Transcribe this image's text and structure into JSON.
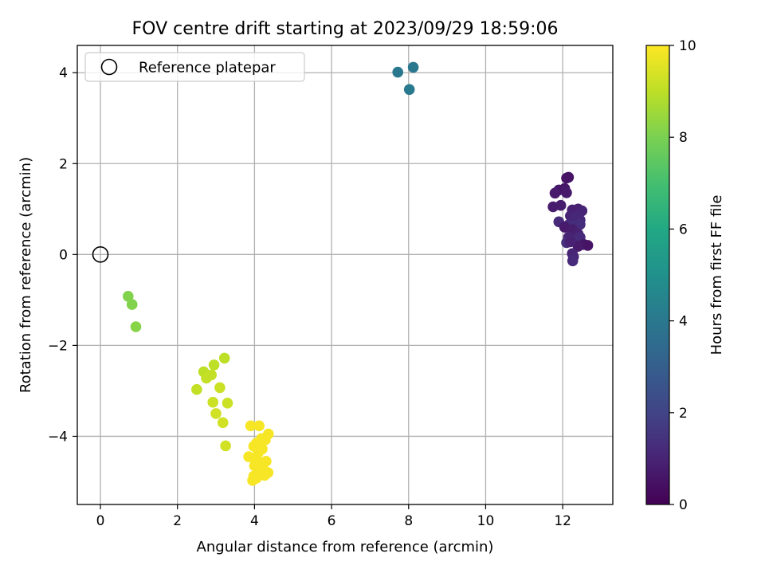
{
  "chart_data": {
    "type": "scatter",
    "title": "FOV centre drift starting at 2023/09/29 18:59:06",
    "xlabel": "Angular distance from reference (arcmin)",
    "ylabel": "Rotation from reference (arcmin)",
    "xlim": [
      -0.6,
      13.3
    ],
    "ylim": [
      -5.5,
      4.6
    ],
    "x_ticks": [
      0,
      2,
      4,
      6,
      8,
      10,
      12
    ],
    "y_ticks": [
      -4,
      -2,
      0,
      2,
      4
    ],
    "x_tick_labels": [
      "0",
      "2",
      "4",
      "6",
      "8",
      "10",
      "12"
    ],
    "y_tick_labels": [
      "−4",
      "−2",
      "0",
      "2",
      "4"
    ],
    "grid": true,
    "legend": {
      "location": "upper-left",
      "entries": [
        "Reference platepar"
      ]
    },
    "reference_point": {
      "name": "Reference platepar",
      "x": 0,
      "y": 0
    },
    "colorbar": {
      "label": "Hours from first FF file",
      "colormap": "viridis",
      "range": [
        0,
        10
      ],
      "ticks": [
        0,
        2,
        4,
        6,
        8,
        10
      ],
      "tick_labels": [
        "0",
        "2",
        "4",
        "6",
        "8",
        "10"
      ]
    },
    "points": [
      {
        "x": 12.1,
        "y": 1.68,
        "h": 0.5
      },
      {
        "x": 12.15,
        "y": 1.7,
        "h": 0.5
      },
      {
        "x": 11.9,
        "y": 1.42,
        "h": 0.6
      },
      {
        "x": 12.05,
        "y": 1.45,
        "h": 0.6
      },
      {
        "x": 12.1,
        "y": 1.36,
        "h": 0.7
      },
      {
        "x": 11.8,
        "y": 1.35,
        "h": 0.7
      },
      {
        "x": 11.75,
        "y": 1.05,
        "h": 0.8
      },
      {
        "x": 11.95,
        "y": 1.08,
        "h": 0.8
      },
      {
        "x": 12.25,
        "y": 0.98,
        "h": 0.9
      },
      {
        "x": 12.4,
        "y": 1.0,
        "h": 0.9
      },
      {
        "x": 12.5,
        "y": 0.96,
        "h": 1.0
      },
      {
        "x": 12.2,
        "y": 0.85,
        "h": 1.0
      },
      {
        "x": 12.35,
        "y": 0.82,
        "h": 1.1
      },
      {
        "x": 12.45,
        "y": 0.76,
        "h": 1.1
      },
      {
        "x": 11.9,
        "y": 0.72,
        "h": 1.2
      },
      {
        "x": 12.15,
        "y": 0.65,
        "h": 1.2
      },
      {
        "x": 12.3,
        "y": 0.62,
        "h": 1.3
      },
      {
        "x": 12.45,
        "y": 0.66,
        "h": 1.3
      },
      {
        "x": 12.05,
        "y": 0.6,
        "h": 0.7
      },
      {
        "x": 12.25,
        "y": 0.55,
        "h": 0.8
      },
      {
        "x": 12.4,
        "y": 0.45,
        "h": 0.9
      },
      {
        "x": 12.15,
        "y": 0.38,
        "h": 1.0
      },
      {
        "x": 12.3,
        "y": 0.32,
        "h": 1.1
      },
      {
        "x": 12.45,
        "y": 0.38,
        "h": 1.2
      },
      {
        "x": 12.1,
        "y": 0.26,
        "h": 1.3
      },
      {
        "x": 12.55,
        "y": 0.22,
        "h": 0.6
      },
      {
        "x": 12.65,
        "y": 0.2,
        "h": 0.5
      },
      {
        "x": 12.4,
        "y": 0.18,
        "h": 0.7
      },
      {
        "x": 12.2,
        "y": 0.28,
        "h": 0.9
      },
      {
        "x": 12.25,
        "y": 0.02,
        "h": 1.0
      },
      {
        "x": 12.28,
        "y": -0.05,
        "h": 1.1
      },
      {
        "x": 12.26,
        "y": -0.14,
        "h": 1.2
      },
      {
        "x": 7.72,
        "y": 4.01,
        "h": 4.0
      },
      {
        "x": 8.12,
        "y": 4.12,
        "h": 4.0
      },
      {
        "x": 8.02,
        "y": 3.63,
        "h": 4.1
      },
      {
        "x": 0.72,
        "y": -0.92,
        "h": 8.1
      },
      {
        "x": 0.82,
        "y": -1.1,
        "h": 8.1
      },
      {
        "x": 0.92,
        "y": -1.59,
        "h": 8.2
      },
      {
        "x": 3.22,
        "y": -2.28,
        "h": 9.0
      },
      {
        "x": 2.68,
        "y": -2.58,
        "h": 9.0
      },
      {
        "x": 2.95,
        "y": -2.43,
        "h": 9.0
      },
      {
        "x": 2.75,
        "y": -2.72,
        "h": 9.1
      },
      {
        "x": 2.88,
        "y": -2.65,
        "h": 9.1
      },
      {
        "x": 2.5,
        "y": -2.97,
        "h": 9.1
      },
      {
        "x": 3.1,
        "y": -2.93,
        "h": 9.2
      },
      {
        "x": 2.92,
        "y": -3.25,
        "h": 9.2
      },
      {
        "x": 3.3,
        "y": -3.27,
        "h": 9.2
      },
      {
        "x": 3.0,
        "y": -3.5,
        "h": 9.3
      },
      {
        "x": 3.18,
        "y": -3.7,
        "h": 9.3
      },
      {
        "x": 3.25,
        "y": -4.21,
        "h": 9.3
      },
      {
        "x": 3.9,
        "y": -3.77,
        "h": 9.9
      },
      {
        "x": 4.12,
        "y": -3.77,
        "h": 9.9
      },
      {
        "x": 4.36,
        "y": -3.95,
        "h": 9.9
      },
      {
        "x": 4.18,
        "y": -4.05,
        "h": 9.9
      },
      {
        "x": 4.28,
        "y": -4.08,
        "h": 9.9
      },
      {
        "x": 4.05,
        "y": -4.15,
        "h": 9.9
      },
      {
        "x": 3.98,
        "y": -4.22,
        "h": 9.9
      },
      {
        "x": 4.2,
        "y": -4.28,
        "h": 9.9
      },
      {
        "x": 4.1,
        "y": -4.36,
        "h": 9.9
      },
      {
        "x": 3.85,
        "y": -4.45,
        "h": 9.9
      },
      {
        "x": 4.02,
        "y": -4.52,
        "h": 9.9
      },
      {
        "x": 4.3,
        "y": -4.55,
        "h": 9.9
      },
      {
        "x": 4.15,
        "y": -4.58,
        "h": 9.9
      },
      {
        "x": 4.0,
        "y": -4.65,
        "h": 9.9
      },
      {
        "x": 4.22,
        "y": -4.72,
        "h": 9.9
      },
      {
        "x": 4.35,
        "y": -4.8,
        "h": 9.9
      },
      {
        "x": 4.12,
        "y": -4.82,
        "h": 9.9
      },
      {
        "x": 4.26,
        "y": -4.86,
        "h": 9.9
      },
      {
        "x": 3.98,
        "y": -4.88,
        "h": 9.9
      },
      {
        "x": 4.05,
        "y": -4.92,
        "h": 9.9
      },
      {
        "x": 3.95,
        "y": -4.97,
        "h": 9.9
      }
    ]
  }
}
